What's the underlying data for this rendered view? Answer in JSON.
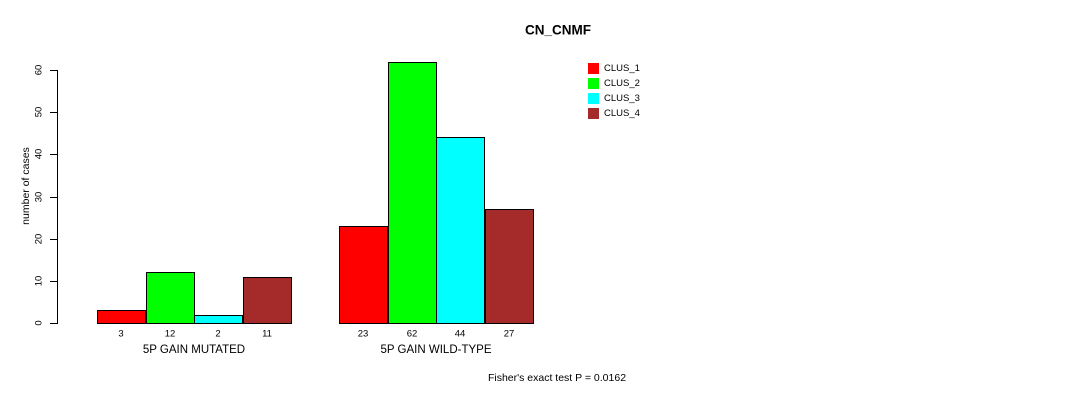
{
  "chart_data": {
    "type": "bar",
    "title": "CN_CNMF",
    "ylabel": "number of cases",
    "categories": [
      "5P GAIN MUTATED",
      "5P GAIN WILD-TYPE"
    ],
    "series": [
      {
        "name": "CLUS_1",
        "color": "#FF0000",
        "values": [
          3,
          23
        ]
      },
      {
        "name": "CLUS_2",
        "color": "#00FF00",
        "values": [
          12,
          62
        ]
      },
      {
        "name": "CLUS_3",
        "color": "#00FFFF",
        "values": [
          2,
          44
        ]
      },
      {
        "name": "CLUS_4",
        "color": "#A52A2A",
        "values": [
          11,
          27
        ]
      }
    ],
    "yticks": [
      0,
      10,
      20,
      30,
      40,
      50,
      60
    ],
    "ylim": [
      0,
      62
    ],
    "grid": false,
    "bar_value_labels": true,
    "legend_position": "top-right",
    "annotation": "Fisher's exact test P = 0.0162"
  }
}
